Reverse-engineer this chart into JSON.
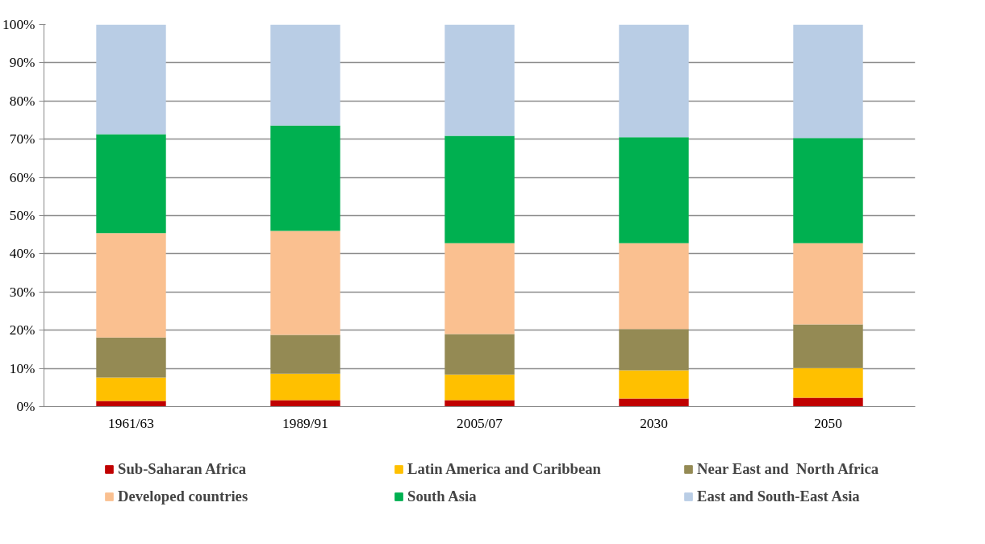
{
  "chart_data": {
    "type": "bar",
    "stacked": true,
    "categories": [
      "1961/63",
      "1989/91",
      "2005/07",
      "2030",
      "2050"
    ],
    "series": [
      {
        "name": "Sub-Saharan Africa",
        "color": "#c00000",
        "values": [
          1.5,
          1.7,
          1.7,
          2.1,
          2.3
        ]
      },
      {
        "name": "Latin America and Caribbean",
        "color": "#ffc000",
        "values": [
          6.1,
          6.9,
          6.7,
          7.4,
          7.8
        ]
      },
      {
        "name": "Near East and  North Africa",
        "color": "#948a54",
        "values": [
          10.5,
          10.2,
          10.6,
          10.8,
          11.4
        ]
      },
      {
        "name": "Developed countries",
        "color": "#fac090",
        "values": [
          27.3,
          27.2,
          23.8,
          22.5,
          21.3
        ]
      },
      {
        "name": "South Asia",
        "color": "#00b050",
        "values": [
          25.9,
          27.6,
          28.1,
          27.7,
          27.5
        ]
      },
      {
        "name": "East and South-East Asia",
        "color": "#b9cde5",
        "values": [
          28.7,
          26.4,
          29.1,
          29.5,
          29.7
        ]
      }
    ],
    "ylim": [
      0,
      100
    ],
    "yticks": [
      {
        "value": 0,
        "label": "0%"
      },
      {
        "value": 10,
        "label": "10%"
      },
      {
        "value": 20,
        "label": "20%"
      },
      {
        "value": 30,
        "label": "30%"
      },
      {
        "value": 40,
        "label": "40%"
      },
      {
        "value": 50,
        "label": "50%"
      },
      {
        "value": 60,
        "label": "60%"
      },
      {
        "value": 70,
        "label": "70%"
      },
      {
        "value": 80,
        "label": "80%"
      },
      {
        "value": 90,
        "label": "90%"
      },
      {
        "value": 100,
        "label": "100%"
      }
    ],
    "grid": "y",
    "legend": "bottom"
  }
}
